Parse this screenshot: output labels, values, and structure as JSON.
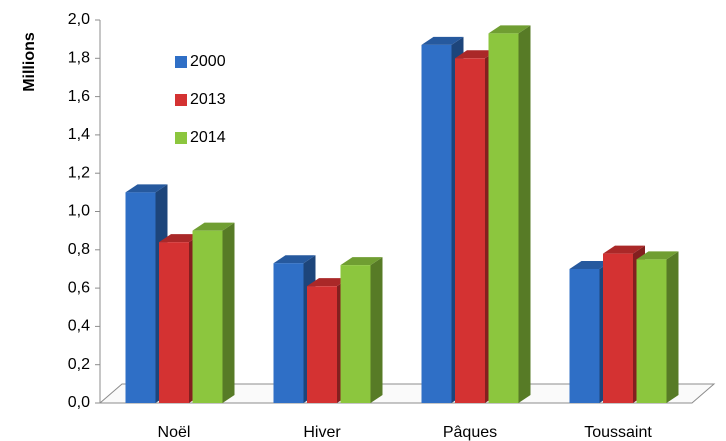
{
  "chart_data": {
    "type": "bar3d",
    "ylabel": "Millions",
    "categories": [
      "Noël",
      "Hiver",
      "Pâques",
      "Toussaint"
    ],
    "series": [
      {
        "name": "2000",
        "color": "#2f6fc6",
        "values": [
          1.1,
          0.73,
          1.87,
          0.7
        ]
      },
      {
        "name": "2013",
        "color": "#d43232",
        "values": [
          0.84,
          0.61,
          1.8,
          0.78
        ]
      },
      {
        "name": "2014",
        "color": "#8cc63e",
        "values": [
          0.9,
          0.72,
          1.93,
          0.75
        ]
      }
    ],
    "ylim": [
      0,
      2.0
    ],
    "yticks": [
      {
        "value": 0,
        "label": "0,0"
      },
      {
        "value": 0.2,
        "label": "0,2"
      },
      {
        "value": 0.4,
        "label": "0,4"
      },
      {
        "value": 0.6,
        "label": "0,6"
      },
      {
        "value": 0.8,
        "label": "0,8"
      },
      {
        "value": 1.0,
        "label": "1,0"
      },
      {
        "value": 1.2,
        "label": "1,2"
      },
      {
        "value": 1.4,
        "label": "1,4"
      },
      {
        "value": 1.6,
        "label": "1,6"
      },
      {
        "value": 1.8,
        "label": "1,8"
      },
      {
        "value": 2.0,
        "label": "2,0"
      }
    ],
    "legend": "upper left"
  }
}
